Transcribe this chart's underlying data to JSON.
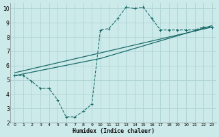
{
  "xlabel": "Humidex (Indice chaleur)",
  "bg_color": "#cdeaea",
  "grid_color": "#afd4d4",
  "line_color": "#1a6b6b",
  "xlim": [
    -0.5,
    23.5
  ],
  "ylim": [
    2,
    10.4
  ],
  "xticks": [
    0,
    1,
    2,
    3,
    4,
    5,
    6,
    7,
    8,
    9,
    10,
    11,
    12,
    13,
    14,
    15,
    16,
    17,
    18,
    19,
    20,
    21,
    22,
    23
  ],
  "yticks": [
    2,
    3,
    4,
    5,
    6,
    7,
    8,
    9,
    10
  ],
  "curve1_x": [
    0,
    1,
    2,
    3,
    4,
    5,
    6,
    7,
    8,
    9,
    10,
    11,
    12,
    13,
    14,
    15,
    16,
    17,
    18,
    19,
    20,
    21,
    22,
    23
  ],
  "curve1_y": [
    5.3,
    5.3,
    4.9,
    4.4,
    4.4,
    3.6,
    2.4,
    2.4,
    2.8,
    3.3,
    8.5,
    8.6,
    9.3,
    10.1,
    10.0,
    10.1,
    9.3,
    8.5,
    8.5,
    8.5,
    8.5,
    8.5,
    8.7,
    8.7
  ],
  "curve2_x": [
    0,
    10,
    23
  ],
  "curve2_y": [
    5.3,
    6.5,
    8.8
  ],
  "curve3_x": [
    0,
    23
  ],
  "curve3_y": [
    5.5,
    8.7
  ]
}
